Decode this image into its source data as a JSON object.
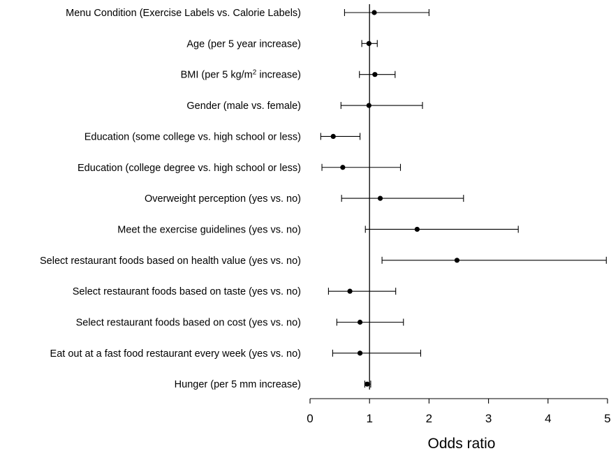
{
  "chart_data": {
    "type": "forest",
    "xlabel": "Odds ratio",
    "xlim": [
      0,
      5
    ],
    "x_ticks": [
      0,
      1,
      2,
      3,
      4,
      5
    ],
    "reference_line": 1,
    "rows": [
      {
        "label": "Menu Condition (Exercise Labels vs. Calorie Labels)",
        "or": 1.08,
        "lo": 0.58,
        "hi": 2.0
      },
      {
        "label": "Age (per 5 year increase)",
        "or": 0.99,
        "lo": 0.87,
        "hi": 1.13
      },
      {
        "label": "BMI (per 5 kg/m",
        "sup": "2",
        "label_tail": " increase)",
        "or": 1.09,
        "lo": 0.83,
        "hi": 1.43
      },
      {
        "label": "Gender (male vs. female)",
        "or": 0.99,
        "lo": 0.52,
        "hi": 1.89
      },
      {
        "label": "Education (some college vs. high school or less)",
        "or": 0.39,
        "lo": 0.18,
        "hi": 0.84
      },
      {
        "label": "Education (college degree vs. high school or less)",
        "or": 0.55,
        "lo": 0.2,
        "hi": 1.52
      },
      {
        "label": "Overweight perception (yes vs. no)",
        "or": 1.18,
        "lo": 0.53,
        "hi": 2.58
      },
      {
        "label": "Meet the exercise guidelines (yes vs. no)",
        "or": 1.8,
        "lo": 0.93,
        "hi": 3.5
      },
      {
        "label": "Select restaurant foods based on health value (yes vs. no)",
        "or": 2.47,
        "lo": 1.21,
        "hi": 4.98
      },
      {
        "label": "Select restaurant foods based on taste (yes vs. no)",
        "or": 0.67,
        "lo": 0.31,
        "hi": 1.44
      },
      {
        "label": "Select restaurant foods based on cost (yes vs. no)",
        "or": 0.84,
        "lo": 0.45,
        "hi": 1.57
      },
      {
        "label": "Eat out at a fast food restaurant every week (yes vs. no)",
        "or": 0.84,
        "lo": 0.38,
        "hi": 1.86
      },
      {
        "label": "Hunger (per 5 mm increase)",
        "or": 0.96,
        "lo": 0.92,
        "hi": 1.02
      }
    ]
  }
}
